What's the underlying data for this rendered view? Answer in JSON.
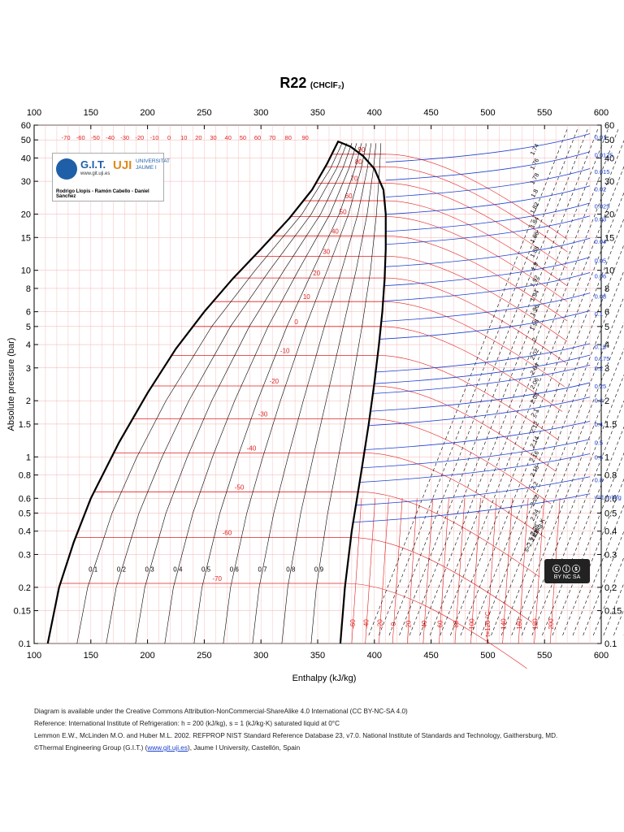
{
  "title": {
    "main": "R22",
    "formula": "(CHClF₂)"
  },
  "logo": {
    "git": "G.I.T.",
    "git_url": "www.git.uji.es",
    "uji": "UJI",
    "university": "UNIVERSITAT JAUME I",
    "authors": "Rodrigo Llopis - Ramón Cabello - Daniel Sánchez"
  },
  "license_badge": {
    "icon": "cc-by-nc-sa-badge",
    "text": "BY NC SA"
  },
  "footer": {
    "line1": "Diagram is available under the Creative Commons Attribution-NonCommercial-ShareAlike 4.0 International (CC BY-NC-SA 4.0)",
    "line2": "Reference: International Institute of Refrigeration: h = 200 (kJ/kg), s = 1 (kJ/kg·K) saturated liquid at 0°C",
    "line3": "Lemmon E.W., McLinden M.O. and Huber M.L. 2002. REFPROP NIST Standard Reference Database 23, v7.0. National Institute of Standards and Technology, Gaithersburg, MD.",
    "line4_pre": "©Thermal Engineering Group (G.I.T.) (",
    "line4_link": "www.git.uji.es",
    "line4_post": "), Jaume I University, Castellón, Spain"
  },
  "chart_data": {
    "type": "line",
    "title": "R22",
    "xlabel": "Enthalpy (kJ/kg)",
    "ylabel": "Absolute pressure (bar)",
    "xlim": [
      100,
      600
    ],
    "ylim": [
      0.1,
      60
    ],
    "yscale": "log",
    "x_ticks": [
      100,
      150,
      200,
      250,
      300,
      350,
      400,
      450,
      500,
      550,
      600
    ],
    "y_ticks": [
      0.1,
      0.15,
      0.2,
      0.3,
      0.4,
      0.5,
      0.6,
      0.8,
      1,
      1.5,
      2,
      3,
      4,
      5,
      6,
      8,
      10,
      15,
      20,
      30,
      40,
      50,
      60
    ],
    "y_tick_labels": [
      "0.1",
      "0.15",
      "0.2",
      "0.3",
      "0.4",
      "0.5",
      "0.6",
      "0.8",
      "1",
      "1.5",
      "2",
      "3",
      "4",
      "5",
      "6",
      "8",
      "10",
      "15",
      "20",
      "30",
      "40",
      "50",
      "60"
    ],
    "colors": {
      "saturation": "#000000",
      "isotherm": "#e02020",
      "isochore": "#1a3fd0",
      "isentrope": "#000000",
      "quality": "#000000"
    },
    "saturation_liquid": {
      "h": [
        112,
        122,
        135,
        150,
        175,
        200,
        225,
        250,
        275,
        300,
        325,
        345,
        358,
        368
      ],
      "p": [
        0.1,
        0.2,
        0.35,
        0.6,
        1.2,
        2.2,
        3.8,
        6.0,
        9.0,
        13.0,
        19.0,
        27.0,
        37.0,
        49.0
      ]
    },
    "saturation_vapor": {
      "h": [
        370,
        374,
        380,
        388,
        395,
        400,
        404,
        407,
        409,
        410,
        410,
        408,
        400,
        390,
        379,
        370,
        368
      ],
      "p": [
        0.1,
        0.2,
        0.4,
        0.8,
        1.5,
        2.5,
        4.0,
        6.0,
        9.0,
        13.0,
        20.0,
        27.0,
        35.0,
        41.0,
        46.0,
        48.5,
        49.0
      ]
    },
    "isotherm_labels_top": [
      "-70",
      "-60",
      "-50",
      "-40",
      "-30",
      "-20",
      "-10",
      "0",
      "10",
      "20",
      "30",
      "40",
      "50",
      "60",
      "70",
      "80",
      "90"
    ],
    "isotherm_labels_top_h": [
      128,
      141,
      154,
      167,
      180,
      193,
      206,
      219,
      232,
      245,
      258,
      271,
      284,
      297,
      310,
      324,
      339
    ],
    "isotherm_labels_dome": [
      "90",
      "80",
      "70",
      "60",
      "50",
      "40",
      "30",
      "20",
      "10",
      "0",
      "-10",
      "-20",
      "-30",
      "-40",
      "-50",
      "-60",
      "-70"
    ],
    "isotherm_p": [
      41.9,
      35.9,
      29.3,
      23.6,
      19.4,
      15.3,
      11.9,
      9.1,
      6.8,
      5.0,
      3.5,
      2.4,
      1.6,
      1.05,
      0.65,
      0.37,
      0.21
    ],
    "isotherm_labels_bottom": [
      "-60",
      "-40",
      "-20",
      "0",
      "20",
      "40",
      "60",
      "80",
      "100",
      "t=120 °C",
      "140",
      "160",
      "180",
      "200"
    ],
    "isotherm_bottom_h": [
      380,
      392,
      404,
      416,
      429,
      443,
      457,
      471,
      485,
      499,
      513,
      527,
      541,
      555
    ],
    "quality_labels": [
      "0.1",
      "0.2",
      "0.3",
      "0.4",
      "0.5",
      "0.6",
      "0.7",
      "0.8",
      "0.9"
    ],
    "isentrope_labels": [
      "1.74",
      "1.76",
      "1.78",
      "1.8",
      "1.82",
      "1.84",
      "1.86",
      "1.88",
      "1.9",
      "1.92",
      "1.94",
      "1.96",
      "1.98",
      "2",
      "2.02",
      "2.04",
      "2.06",
      "2.08",
      "2.1",
      "2.12",
      "2.14",
      "2.16",
      "2.18",
      "2.2",
      "2.22",
      "2.24",
      "2.26",
      "2.28",
      "s=2.3 kJ/kg·K"
    ],
    "isochore_labels": [
      "0.01",
      "0.0125",
      "0.015",
      "0.02",
      "0.025",
      "0.03",
      "0.04",
      "0.05",
      "0.06",
      "0.08",
      "0.1",
      "0.15",
      "0.175",
      "0.2",
      "0.25",
      "0.3",
      "0.4",
      "0.5",
      "0.6",
      "0.8",
      "v=1 m³/kg"
    ],
    "isochore_p": [
      40,
      32,
      26,
      21,
      17,
      14.5,
      11,
      8.7,
      7.2,
      5.6,
      4.5,
      3.0,
      2.6,
      2.3,
      1.85,
      1.55,
      1.15,
      0.92,
      0.77,
      0.58,
      0.47
    ]
  }
}
